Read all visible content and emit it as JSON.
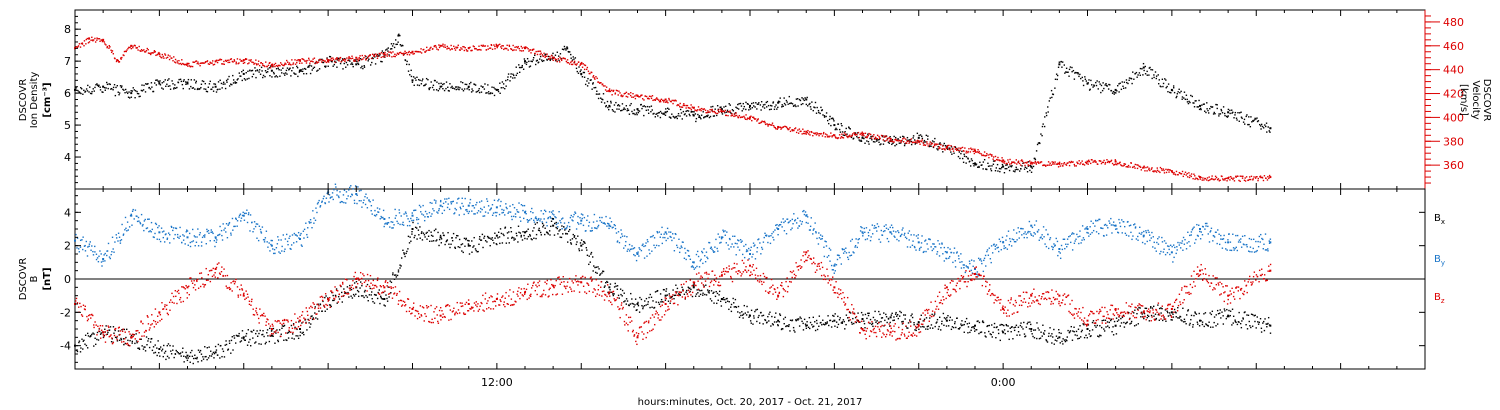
{
  "chart_data": {
    "x_axis": {
      "label": "hours:minutes, Oct. 20, 2017 - Oct. 21, 2017",
      "range_hours": [
        0,
        48
      ],
      "ticks": [
        {
          "hour": 15,
          "label": "12:00"
        },
        {
          "hour": 33,
          "label": "0:00"
        }
      ]
    },
    "panels": [
      {
        "type": "scatter",
        "ylabel_left": [
          "DSCOVR",
          "Ion Density",
          "[cm⁻³]"
        ],
        "ylabel_right": [
          "DSCOVR",
          "Velocity",
          "[km/s]"
        ],
        "left_axis": {
          "ylim": [
            3.0,
            8.6
          ],
          "ticks": [
            4,
            5,
            6,
            7,
            8
          ],
          "color": "#000000"
        },
        "right_axis": {
          "ylim": [
            340,
            490
          ],
          "ticks": [
            360,
            380,
            400,
            420,
            440,
            460,
            480
          ],
          "color": "#dd0000"
        },
        "series": [
          {
            "axis": "left",
            "color": "#000000",
            "x": [
              0,
              1,
              2,
              3,
              4,
              5,
              6,
              7,
              8,
              9,
              10,
              11,
              11.5,
              12,
              13,
              14,
              15,
              16,
              17,
              17.5,
              18,
              19,
              20,
              21,
              22,
              23,
              24,
              25,
              26,
              27,
              28,
              29,
              30,
              31,
              32,
              33,
              34,
              35,
              36,
              37,
              38,
              39,
              40,
              41,
              42.5
            ],
            "y": [
              6.1,
              6.2,
              6.0,
              6.3,
              6.3,
              6.2,
              6.6,
              6.7,
              6.7,
              7.0,
              6.9,
              7.2,
              7.8,
              6.4,
              6.2,
              6.2,
              6.1,
              7.0,
              7.1,
              7.4,
              6.6,
              5.6,
              5.5,
              5.4,
              5.3,
              5.5,
              5.6,
              5.7,
              5.8,
              5.0,
              4.6,
              4.5,
              4.6,
              4.3,
              3.8,
              3.7,
              3.7,
              6.9,
              6.3,
              6.1,
              6.8,
              6.1,
              5.6,
              5.4,
              4.9
            ]
          },
          {
            "axis": "right",
            "color": "#dd0000",
            "x": [
              0,
              0.5,
              1,
              1.5,
              2,
              3,
              4,
              5,
              6,
              7,
              8,
              9,
              10,
              11,
              12,
              13,
              14,
              15,
              16,
              17,
              18,
              19,
              20,
              21,
              22,
              23,
              24,
              25,
              26,
              27,
              28,
              29,
              30,
              31,
              32,
              33,
              34,
              35,
              36,
              37,
              38,
              39,
              40,
              41,
              42.5
            ],
            "y": [
              458,
              466,
              465,
              448,
              460,
              453,
              445,
              447,
              448,
              444,
              448,
              448,
              450,
              453,
              455,
              460,
              458,
              460,
              458,
              450,
              445,
              422,
              418,
              415,
              408,
              405,
              400,
              392,
              388,
              385,
              386,
              382,
              380,
              375,
              372,
              364,
              362,
              361,
              363,
              363,
              358,
              355,
              350,
              349,
              350
            ]
          }
        ]
      },
      {
        "type": "scatter",
        "ylabel_left": [
          "DSCOVR",
          "B",
          "[nT]"
        ],
        "left_axis": {
          "ylim": [
            -5.4,
            5.4
          ],
          "ticks": [
            -4,
            -2,
            0,
            2,
            4
          ],
          "color": "#000000"
        },
        "zero_line": true,
        "legend": {
          "placement": "right",
          "items": [
            {
              "text": "B",
              "sub": "x",
              "color": "#000000"
            },
            {
              "text": "B",
              "sub": "y",
              "color": "#1a75c8"
            },
            {
              "text": "B",
              "sub": "z",
              "color": "#dd0000"
            }
          ]
        },
        "series": [
          {
            "name": "Bx",
            "color": "#000000",
            "x": [
              0,
              1,
              2,
              3,
              4,
              5,
              6,
              7,
              8,
              9,
              10,
              11,
              12,
              13,
              14,
              15,
              16,
              17,
              18,
              19,
              20,
              21,
              22,
              23,
              24,
              25,
              26,
              27,
              28,
              29,
              30,
              31,
              32,
              33,
              34,
              35,
              36,
              37,
              38,
              39,
              40,
              41,
              42.5
            ],
            "y": [
              -4.0,
              -3.2,
              -3.5,
              -4.2,
              -4.6,
              -4.4,
              -3.5,
              -3.4,
              -3.0,
              -1.2,
              -0.5,
              -1.2,
              3.0,
              2.5,
              2.0,
              2.6,
              2.8,
              3.2,
              2.0,
              -0.5,
              -1.5,
              -1.0,
              -0.5,
              -1.2,
              -2.2,
              -2.5,
              -2.8,
              -2.5,
              -2.4,
              -2.3,
              -2.6,
              -2.5,
              -2.8,
              -3.2,
              -3.0,
              -3.5,
              -3.0,
              -2.8,
              -2.0,
              -2.0,
              -2.5,
              -2.2,
              -2.8
            ]
          },
          {
            "name": "By",
            "color": "#1a75c8",
            "x": [
              0,
              1,
              2,
              3,
              4,
              5,
              6,
              7,
              8,
              9,
              10,
              11,
              12,
              13,
              14,
              15,
              16,
              17,
              18,
              19,
              20,
              21,
              22,
              23,
              24,
              25,
              26,
              27,
              28,
              29,
              30,
              31,
              32,
              33,
              34,
              35,
              36,
              37,
              38,
              39,
              40,
              41,
              42.5
            ],
            "y": [
              2.3,
              1.2,
              3.8,
              2.8,
              2.5,
              2.5,
              3.8,
              2.0,
              2.4,
              5.2,
              5.1,
              3.6,
              3.8,
              4.4,
              4.4,
              4.3,
              4.0,
              3.6,
              3.5,
              3.2,
              1.5,
              2.8,
              1.0,
              2.5,
              1.5,
              3.0,
              3.8,
              0.8,
              2.8,
              2.8,
              2.2,
              1.6,
              0.6,
              2.2,
              3.2,
              1.8,
              3.0,
              3.2,
              2.6,
              1.6,
              3.0,
              2.2,
              2.2
            ]
          },
          {
            "name": "Bz",
            "color": "#dd0000",
            "x": [
              0,
              1,
              2,
              3,
              4,
              5,
              6,
              7,
              8,
              9,
              10,
              11,
              12,
              13,
              14,
              15,
              16,
              17,
              18,
              19,
              20,
              21,
              22,
              23,
              24,
              25,
              26,
              27,
              28,
              29,
              30,
              31,
              32,
              33,
              34,
              35,
              36,
              37,
              38,
              39,
              40,
              41,
              42.5
            ],
            "y": [
              -1.5,
              -3.2,
              -3.5,
              -2.0,
              -0.5,
              0.6,
              -1.0,
              -3.0,
              -2.5,
              -1.2,
              0.0,
              -0.5,
              -1.8,
              -2.2,
              -1.5,
              -1.2,
              -0.8,
              -0.4,
              -0.2,
              -0.8,
              -3.5,
              -1.5,
              -0.2,
              0.2,
              0.8,
              -1.0,
              1.6,
              -0.5,
              -3.0,
              -3.2,
              -2.8,
              -0.5,
              0.3,
              -1.8,
              -1.0,
              -1.0,
              -2.5,
              -1.8,
              -2.0,
              -1.8,
              0.5,
              -1.0,
              0.5
            ]
          }
        ]
      }
    ]
  }
}
